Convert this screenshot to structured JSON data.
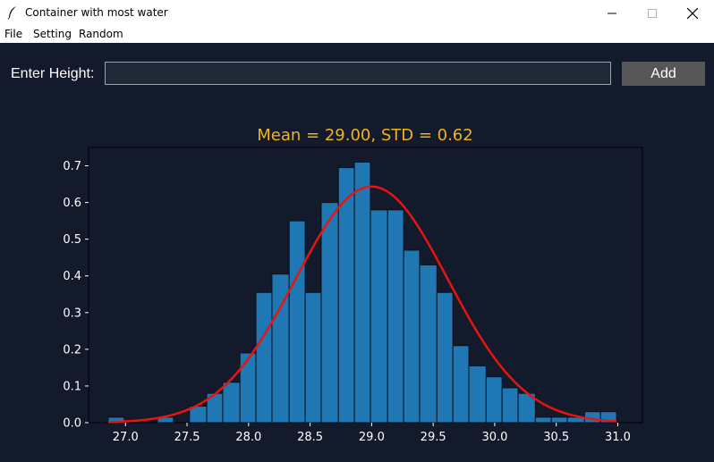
{
  "window": {
    "title": "Container with most water",
    "icon": "feather-icon",
    "controls": [
      "minimize-icon",
      "maximize-icon",
      "close-icon"
    ]
  },
  "menu": {
    "items": [
      "File",
      "Setting",
      "Random"
    ]
  },
  "form": {
    "label": "Enter Height:",
    "input_value": "",
    "button_label": "Add"
  },
  "colors": {
    "background": "#131a2b",
    "bar_fill": "#1f77b4",
    "curve": "#e8140f",
    "title": "#f2b21c",
    "axis_text": "#ffffff"
  },
  "chart_data": {
    "type": "bar",
    "title": "Mean = 29.00, STD = 0.62",
    "xlabel": "",
    "ylabel": "",
    "xlim": [
      26.7,
      31.2
    ],
    "ylim": [
      0,
      0.75
    ],
    "xticks": [
      "27.0",
      "27.5",
      "28.0",
      "28.5",
      "29.0",
      "29.5",
      "30.0",
      "30.5",
      "31.0"
    ],
    "yticks": [
      "0.0",
      "0.1",
      "0.2",
      "0.3",
      "0.4",
      "0.5",
      "0.6",
      "0.7"
    ],
    "bins": [
      {
        "x0": 26.86,
        "x1": 26.99,
        "density": 0.015
      },
      {
        "x0": 27.26,
        "x1": 27.39,
        "density": 0.015
      },
      {
        "x0": 27.52,
        "x1": 27.66,
        "density": 0.045
      },
      {
        "x0": 27.66,
        "x1": 27.79,
        "density": 0.08
      },
      {
        "x0": 27.79,
        "x1": 27.93,
        "density": 0.11
      },
      {
        "x0": 27.93,
        "x1": 28.06,
        "density": 0.19
      },
      {
        "x0": 28.06,
        "x1": 28.19,
        "density": 0.355
      },
      {
        "x0": 28.19,
        "x1": 28.33,
        "density": 0.405
      },
      {
        "x0": 28.33,
        "x1": 28.46,
        "density": 0.55
      },
      {
        "x0": 28.46,
        "x1": 28.59,
        "density": 0.355
      },
      {
        "x0": 28.59,
        "x1": 28.73,
        "density": 0.6
      },
      {
        "x0": 28.73,
        "x1": 28.86,
        "density": 0.695
      },
      {
        "x0": 28.86,
        "x1": 28.99,
        "density": 0.71
      },
      {
        "x0": 28.99,
        "x1": 29.13,
        "density": 0.58
      },
      {
        "x0": 29.13,
        "x1": 29.26,
        "density": 0.58
      },
      {
        "x0": 29.26,
        "x1": 29.39,
        "density": 0.47
      },
      {
        "x0": 29.39,
        "x1": 29.53,
        "density": 0.43
      },
      {
        "x0": 29.53,
        "x1": 29.66,
        "density": 0.355
      },
      {
        "x0": 29.66,
        "x1": 29.79,
        "density": 0.21
      },
      {
        "x0": 29.79,
        "x1": 29.93,
        "density": 0.155
      },
      {
        "x0": 29.93,
        "x1": 30.06,
        "density": 0.125
      },
      {
        "x0": 30.06,
        "x1": 30.19,
        "density": 0.095
      },
      {
        "x0": 30.19,
        "x1": 30.33,
        "density": 0.08
      },
      {
        "x0": 30.33,
        "x1": 30.46,
        "density": 0.015
      },
      {
        "x0": 30.46,
        "x1": 30.59,
        "density": 0.015
      },
      {
        "x0": 30.59,
        "x1": 30.73,
        "density": 0.015
      },
      {
        "x0": 30.73,
        "x1": 30.86,
        "density": 0.03
      },
      {
        "x0": 30.86,
        "x1": 30.99,
        "density": 0.03
      }
    ],
    "curve": {
      "type": "normal_pdf",
      "mean": 29.0,
      "std": 0.62,
      "x_range": [
        26.86,
        30.99
      ]
    }
  }
}
